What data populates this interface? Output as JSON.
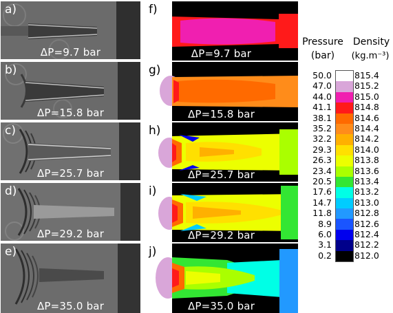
{
  "schlieren_panels": [
    {
      "label": "a)",
      "dp": "ΔP=9.7 bar"
    },
    {
      "label": "b)",
      "dp": "ΔP=15.8 bar"
    },
    {
      "label": "c)",
      "dp": "ΔP=25.7 bar"
    },
    {
      "label": "d)",
      "dp": "ΔP=29.2 bar"
    },
    {
      "label": "e)",
      "dp": "ΔP=35.0 bar"
    }
  ],
  "contour_panels": [
    {
      "label": "f)",
      "dp": "ΔP=9.7 bar"
    },
    {
      "label": "g)",
      "dp": "ΔP=15.8 bar"
    },
    {
      "label": "h)",
      "dp": "ΔP=25.7 bar"
    },
    {
      "label": "i)",
      "dp": "ΔP=29.2 bar"
    },
    {
      "label": "j)",
      "dp": "ΔP=35.0 bar"
    }
  ],
  "legend": {
    "pressure_title": "Pressure",
    "pressure_unit": "(bar)",
    "density_title": "Density",
    "density_unit": "(kg.m⁻³)",
    "pressure_values": [
      "50.0",
      "47.0",
      "44.0",
      "41.1",
      "38.1",
      "35.2",
      "32.2",
      "29.3",
      "26.3",
      "23.4",
      "20.5",
      "17.6",
      "14.7",
      "11.8",
      "8.9",
      "6.0",
      "3.1",
      "0.2"
    ],
    "density_values": [
      "815.4",
      "815.2",
      "815.0",
      "814.8",
      "814.6",
      "814.4",
      "814.2",
      "814.0",
      "813.8",
      "813.6",
      "813.4",
      "813.2",
      "813.0",
      "812.8",
      "812.6",
      "812.4",
      "812.2",
      "812.0"
    ],
    "colors": [
      "#ffffff",
      "#d9a6d9",
      "#f01fb0",
      "#ff1a1a",
      "#ff6a00",
      "#ff8c1a",
      "#ffb000",
      "#ffe000",
      "#ecff00",
      "#aaff00",
      "#33e633",
      "#00ffe6",
      "#00ccff",
      "#2299ff",
      "#1a55ff",
      "#0000ee",
      "#00008b",
      "#000000"
    ]
  }
}
